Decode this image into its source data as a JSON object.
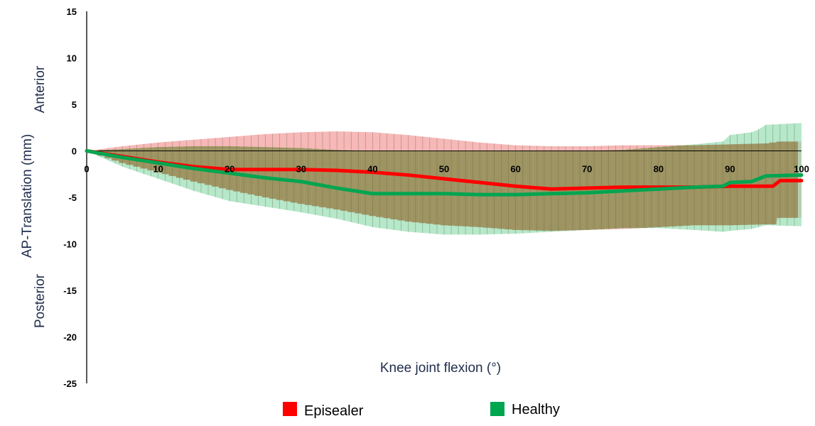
{
  "chart_data": {
    "type": "line",
    "xlabel": "Knee joint flexion (°)",
    "ylabel": "AP-Translation (mm)",
    "ylabel_top": "Anterior",
    "ylabel_bottom": "Posterior",
    "xlim": [
      0,
      100
    ],
    "ylim": [
      -25,
      15
    ],
    "x_ticks": [
      0,
      10,
      20,
      30,
      40,
      50,
      60,
      70,
      80,
      90,
      100
    ],
    "y_ticks": [
      15,
      10,
      5,
      0,
      -5,
      -10,
      -15,
      -20,
      -25
    ],
    "legend_placement": "bottom-center",
    "grid": false,
    "series": [
      {
        "name": "Episealer",
        "color": "#ff0000",
        "band_color": "#f4a0a0",
        "x": [
          0,
          5,
          10,
          15,
          20,
          25,
          30,
          35,
          40,
          45,
          50,
          55,
          60,
          65,
          70,
          75,
          80,
          85,
          90,
          95,
          96,
          97,
          100
        ],
        "mean": [
          0,
          -0.6,
          -1.2,
          -1.7,
          -2.0,
          -2.0,
          -2.0,
          -2.1,
          -2.3,
          -2.6,
          -3.0,
          -3.4,
          -3.8,
          -4.1,
          -4.0,
          -3.9,
          -3.9,
          -3.9,
          -3.8,
          -3.8,
          -3.8,
          -3.2,
          -3.2
        ],
        "upper": [
          0,
          0.5,
          0.9,
          1.2,
          1.5,
          1.8,
          2.0,
          2.1,
          2.0,
          1.7,
          1.3,
          0.9,
          0.6,
          0.5,
          0.5,
          0.6,
          0.6,
          0.6,
          0.7,
          0.8,
          0.9,
          1.0,
          1.0
        ],
        "lower": [
          0,
          -1.3,
          -2.3,
          -3.3,
          -4.2,
          -5.0,
          -5.7,
          -6.3,
          -7.0,
          -7.6,
          -8.0,
          -8.2,
          -8.5,
          -8.6,
          -8.5,
          -8.4,
          -8.2,
          -8.0,
          -8.0,
          -7.9,
          -7.9,
          -7.2,
          -7.2
        ]
      },
      {
        "name": "Healthy",
        "color": "#00a550",
        "band_color": "#8fdcae",
        "x": [
          0,
          5,
          10,
          15,
          20,
          25,
          30,
          35,
          40,
          45,
          50,
          55,
          60,
          65,
          70,
          75,
          80,
          85,
          89,
          90,
          93,
          94,
          95,
          100
        ],
        "mean": [
          0,
          -0.7,
          -1.3,
          -1.9,
          -2.4,
          -2.9,
          -3.3,
          -4.0,
          -4.6,
          -4.6,
          -4.6,
          -4.7,
          -4.7,
          -4.6,
          -4.5,
          -4.3,
          -4.1,
          -3.9,
          -3.8,
          -3.4,
          -3.3,
          -3.0,
          -2.7,
          -2.6
        ],
        "upper": [
          0,
          0.2,
          0.4,
          0.5,
          0.5,
          0.4,
          0.3,
          0.1,
          0,
          0,
          0,
          0,
          0,
          0,
          0,
          0.1,
          0.4,
          0.7,
          1.0,
          1.7,
          2.0,
          2.3,
          2.8,
          3.0
        ],
        "lower": [
          0,
          -1.7,
          -3.0,
          -4.3,
          -5.4,
          -6.0,
          -6.6,
          -7.3,
          -8.2,
          -8.7,
          -9.0,
          -9.0,
          -8.9,
          -8.7,
          -8.5,
          -8.3,
          -8.3,
          -8.5,
          -8.7,
          -8.6,
          -8.4,
          -8.2,
          -8.0,
          -8.1
        ]
      }
    ]
  }
}
